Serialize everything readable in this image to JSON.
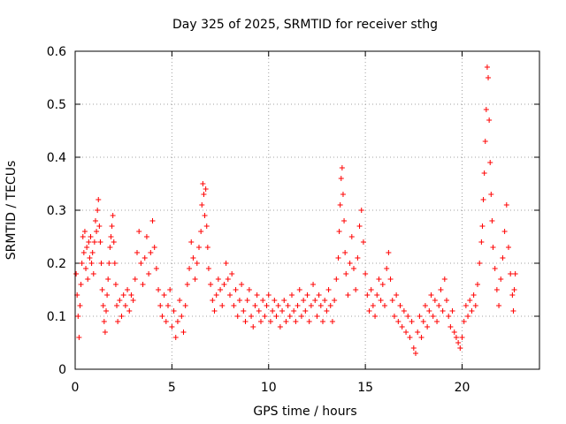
{
  "chart_data": {
    "type": "scatter",
    "title": "Day 325 of 2025, SRMTID for receiver sthg",
    "xlabel": "GPS time / hours",
    "ylabel": "SRMTID / TECUs",
    "xlim": [
      0,
      24
    ],
    "ylim": [
      0,
      0.6
    ],
    "xticks": [
      0,
      5,
      10,
      15,
      20
    ],
    "yticks": [
      0,
      0.1,
      0.2,
      0.3,
      0.4,
      0.5,
      0.6
    ],
    "xtick_labels": [
      "0",
      "5",
      "10",
      "15",
      "20"
    ],
    "ytick_labels": [
      "0",
      "0.1",
      "0.2",
      "0.3",
      "0.4",
      "0.5",
      "0.6"
    ],
    "grid": true,
    "marker": "+",
    "color": "#ff0000",
    "series": [
      {
        "name": "SRMTID",
        "points": [
          [
            0.05,
            0.18
          ],
          [
            0.1,
            0.14
          ],
          [
            0.15,
            0.1
          ],
          [
            0.2,
            0.06
          ],
          [
            0.25,
            0.12
          ],
          [
            0.3,
            0.16
          ],
          [
            0.35,
            0.2
          ],
          [
            0.4,
            0.25
          ],
          [
            0.45,
            0.22
          ],
          [
            0.5,
            0.26
          ],
          [
            0.55,
            0.19
          ],
          [
            0.6,
            0.23
          ],
          [
            0.65,
            0.17
          ],
          [
            0.7,
            0.24
          ],
          [
            0.75,
            0.21
          ],
          [
            0.8,
            0.25
          ],
          [
            0.85,
            0.2
          ],
          [
            0.9,
            0.22
          ],
          [
            0.95,
            0.18
          ],
          [
            1.0,
            0.24
          ],
          [
            1.05,
            0.28
          ],
          [
            1.1,
            0.26
          ],
          [
            1.15,
            0.3
          ],
          [
            1.2,
            0.32
          ],
          [
            1.25,
            0.27
          ],
          [
            1.3,
            0.24
          ],
          [
            1.35,
            0.2
          ],
          [
            1.4,
            0.15
          ],
          [
            1.45,
            0.12
          ],
          [
            1.5,
            0.09
          ],
          [
            1.55,
            0.07
          ],
          [
            1.6,
            0.11
          ],
          [
            1.65,
            0.14
          ],
          [
            1.7,
            0.17
          ],
          [
            1.75,
            0.2
          ],
          [
            1.8,
            0.23
          ],
          [
            1.85,
            0.25
          ],
          [
            1.9,
            0.27
          ],
          [
            1.95,
            0.29
          ],
          [
            2.0,
            0.24
          ],
          [
            2.05,
            0.2
          ],
          [
            2.1,
            0.16
          ],
          [
            2.15,
            0.12
          ],
          [
            2.2,
            0.09
          ],
          [
            2.3,
            0.13
          ],
          [
            2.4,
            0.1
          ],
          [
            2.5,
            0.14
          ],
          [
            2.6,
            0.12
          ],
          [
            2.7,
            0.15
          ],
          [
            2.8,
            0.11
          ],
          [
            2.9,
            0.14
          ],
          [
            3.0,
            0.13
          ],
          [
            3.1,
            0.17
          ],
          [
            3.2,
            0.22
          ],
          [
            3.3,
            0.26
          ],
          [
            3.4,
            0.2
          ],
          [
            3.5,
            0.16
          ],
          [
            3.6,
            0.21
          ],
          [
            3.7,
            0.25
          ],
          [
            3.8,
            0.18
          ],
          [
            3.9,
            0.22
          ],
          [
            4.0,
            0.28
          ],
          [
            4.1,
            0.23
          ],
          [
            4.2,
            0.19
          ],
          [
            4.3,
            0.15
          ],
          [
            4.4,
            0.12
          ],
          [
            4.5,
            0.1
          ],
          [
            4.6,
            0.14
          ],
          [
            4.7,
            0.09
          ],
          [
            4.8,
            0.12
          ],
          [
            4.9,
            0.15
          ],
          [
            5.0,
            0.08
          ],
          [
            5.1,
            0.11
          ],
          [
            5.2,
            0.06
          ],
          [
            5.3,
            0.09
          ],
          [
            5.4,
            0.13
          ],
          [
            5.5,
            0.1
          ],
          [
            5.6,
            0.07
          ],
          [
            5.7,
            0.12
          ],
          [
            5.8,
            0.16
          ],
          [
            5.9,
            0.19
          ],
          [
            6.0,
            0.24
          ],
          [
            6.1,
            0.21
          ],
          [
            6.2,
            0.17
          ],
          [
            6.3,
            0.2
          ],
          [
            6.4,
            0.23
          ],
          [
            6.5,
            0.26
          ],
          [
            6.55,
            0.31
          ],
          [
            6.6,
            0.35
          ],
          [
            6.65,
            0.33
          ],
          [
            6.7,
            0.29
          ],
          [
            6.75,
            0.34
          ],
          [
            6.8,
            0.27
          ],
          [
            6.85,
            0.23
          ],
          [
            6.9,
            0.19
          ],
          [
            7.0,
            0.16
          ],
          [
            7.1,
            0.13
          ],
          [
            7.2,
            0.11
          ],
          [
            7.3,
            0.14
          ],
          [
            7.4,
            0.17
          ],
          [
            7.5,
            0.15
          ],
          [
            7.6,
            0.12
          ],
          [
            7.7,
            0.16
          ],
          [
            7.8,
            0.2
          ],
          [
            7.9,
            0.17
          ],
          [
            8.0,
            0.14
          ],
          [
            8.1,
            0.18
          ],
          [
            8.2,
            0.12
          ],
          [
            8.3,
            0.15
          ],
          [
            8.4,
            0.1
          ],
          [
            8.5,
            0.13
          ],
          [
            8.6,
            0.16
          ],
          [
            8.7,
            0.11
          ],
          [
            8.8,
            0.09
          ],
          [
            8.9,
            0.13
          ],
          [
            9.0,
            0.15
          ],
          [
            9.1,
            0.1
          ],
          [
            9.2,
            0.08
          ],
          [
            9.3,
            0.12
          ],
          [
            9.4,
            0.14
          ],
          [
            9.5,
            0.11
          ],
          [
            9.6,
            0.09
          ],
          [
            9.7,
            0.13
          ],
          [
            9.8,
            0.1
          ],
          [
            9.9,
            0.12
          ],
          [
            10.0,
            0.14
          ],
          [
            10.1,
            0.09
          ],
          [
            10.2,
            0.11
          ],
          [
            10.3,
            0.13
          ],
          [
            10.4,
            0.1
          ],
          [
            10.5,
            0.12
          ],
          [
            10.6,
            0.08
          ],
          [
            10.7,
            0.11
          ],
          [
            10.8,
            0.13
          ],
          [
            10.9,
            0.09
          ],
          [
            11.0,
            0.12
          ],
          [
            11.1,
            0.1
          ],
          [
            11.2,
            0.14
          ],
          [
            11.3,
            0.11
          ],
          [
            11.4,
            0.09
          ],
          [
            11.5,
            0.12
          ],
          [
            11.6,
            0.15
          ],
          [
            11.7,
            0.1
          ],
          [
            11.8,
            0.13
          ],
          [
            11.9,
            0.11
          ],
          [
            12.0,
            0.14
          ],
          [
            12.1,
            0.09
          ],
          [
            12.2,
            0.12
          ],
          [
            12.3,
            0.16
          ],
          [
            12.4,
            0.13
          ],
          [
            12.5,
            0.1
          ],
          [
            12.6,
            0.14
          ],
          [
            12.7,
            0.12
          ],
          [
            12.8,
            0.09
          ],
          [
            12.9,
            0.13
          ],
          [
            13.0,
            0.11
          ],
          [
            13.1,
            0.15
          ],
          [
            13.2,
            0.12
          ],
          [
            13.3,
            0.09
          ],
          [
            13.4,
            0.13
          ],
          [
            13.5,
            0.17
          ],
          [
            13.6,
            0.21
          ],
          [
            13.65,
            0.26
          ],
          [
            13.7,
            0.31
          ],
          [
            13.75,
            0.36
          ],
          [
            13.8,
            0.38
          ],
          [
            13.85,
            0.33
          ],
          [
            13.9,
            0.28
          ],
          [
            13.95,
            0.22
          ],
          [
            14.0,
            0.18
          ],
          [
            14.1,
            0.14
          ],
          [
            14.2,
            0.2
          ],
          [
            14.3,
            0.25
          ],
          [
            14.4,
            0.19
          ],
          [
            14.5,
            0.15
          ],
          [
            14.6,
            0.21
          ],
          [
            14.7,
            0.27
          ],
          [
            14.8,
            0.3
          ],
          [
            14.9,
            0.24
          ],
          [
            15.0,
            0.18
          ],
          [
            15.1,
            0.14
          ],
          [
            15.2,
            0.11
          ],
          [
            15.3,
            0.15
          ],
          [
            15.4,
            0.12
          ],
          [
            15.5,
            0.1
          ],
          [
            15.6,
            0.14
          ],
          [
            15.7,
            0.17
          ],
          [
            15.8,
            0.13
          ],
          [
            15.9,
            0.16
          ],
          [
            16.0,
            0.12
          ],
          [
            16.1,
            0.19
          ],
          [
            16.2,
            0.22
          ],
          [
            16.3,
            0.17
          ],
          [
            16.4,
            0.13
          ],
          [
            16.5,
            0.1
          ],
          [
            16.6,
            0.14
          ],
          [
            16.7,
            0.09
          ],
          [
            16.8,
            0.12
          ],
          [
            16.9,
            0.08
          ],
          [
            17.0,
            0.11
          ],
          [
            17.1,
            0.07
          ],
          [
            17.2,
            0.1
          ],
          [
            17.3,
            0.06
          ],
          [
            17.4,
            0.09
          ],
          [
            17.5,
            0.04
          ],
          [
            17.6,
            0.03
          ],
          [
            17.7,
            0.07
          ],
          [
            17.8,
            0.1
          ],
          [
            17.9,
            0.06
          ],
          [
            18.0,
            0.09
          ],
          [
            18.1,
            0.12
          ],
          [
            18.2,
            0.08
          ],
          [
            18.3,
            0.11
          ],
          [
            18.4,
            0.14
          ],
          [
            18.5,
            0.1
          ],
          [
            18.6,
            0.13
          ],
          [
            18.7,
            0.09
          ],
          [
            18.8,
            0.12
          ],
          [
            18.9,
            0.15
          ],
          [
            19.0,
            0.11
          ],
          [
            19.1,
            0.17
          ],
          [
            19.2,
            0.13
          ],
          [
            19.3,
            0.1
          ],
          [
            19.4,
            0.08
          ],
          [
            19.5,
            0.11
          ],
          [
            19.6,
            0.07
          ],
          [
            19.7,
            0.06
          ],
          [
            19.8,
            0.05
          ],
          [
            19.9,
            0.04
          ],
          [
            20.0,
            0.06
          ],
          [
            20.1,
            0.09
          ],
          [
            20.2,
            0.12
          ],
          [
            20.3,
            0.1
          ],
          [
            20.4,
            0.13
          ],
          [
            20.5,
            0.11
          ],
          [
            20.6,
            0.14
          ],
          [
            20.7,
            0.12
          ],
          [
            20.8,
            0.16
          ],
          [
            20.9,
            0.2
          ],
          [
            21.0,
            0.24
          ],
          [
            21.05,
            0.27
          ],
          [
            21.1,
            0.32
          ],
          [
            21.15,
            0.37
          ],
          [
            21.2,
            0.43
          ],
          [
            21.25,
            0.49
          ],
          [
            21.3,
            0.57
          ],
          [
            21.35,
            0.55
          ],
          [
            21.4,
            0.47
          ],
          [
            21.45,
            0.39
          ],
          [
            21.5,
            0.33
          ],
          [
            21.55,
            0.28
          ],
          [
            21.6,
            0.23
          ],
          [
            21.7,
            0.19
          ],
          [
            21.8,
            0.15
          ],
          [
            21.9,
            0.12
          ],
          [
            22.0,
            0.17
          ],
          [
            22.1,
            0.21
          ],
          [
            22.2,
            0.26
          ],
          [
            22.3,
            0.31
          ],
          [
            22.4,
            0.23
          ],
          [
            22.5,
            0.18
          ],
          [
            22.6,
            0.14
          ],
          [
            22.65,
            0.11
          ],
          [
            22.7,
            0.15
          ],
          [
            22.75,
            0.18
          ]
        ]
      }
    ]
  }
}
